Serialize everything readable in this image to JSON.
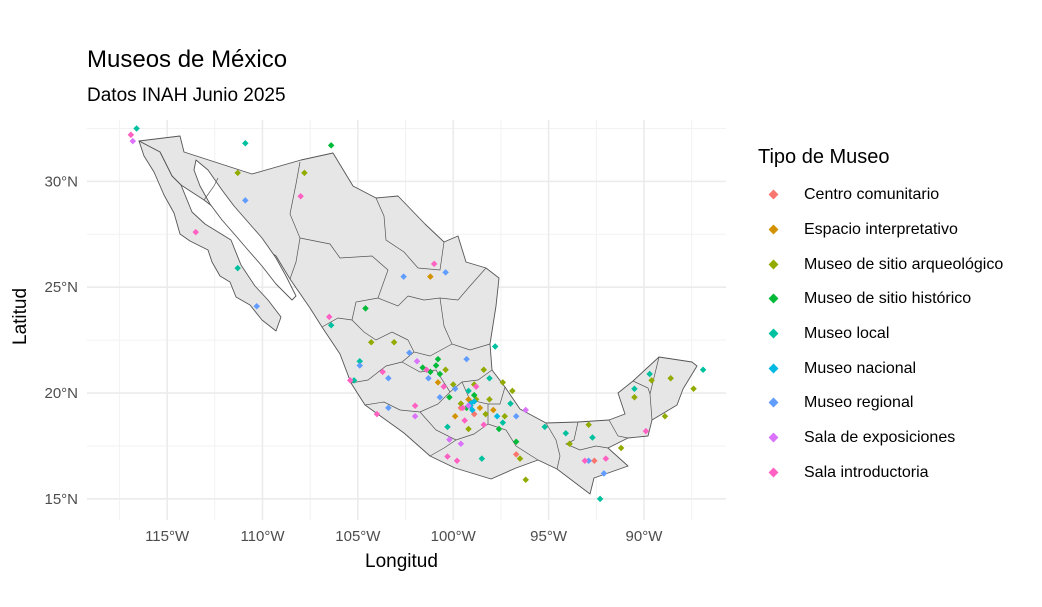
{
  "title": "Museos de México",
  "subtitle": "Datos INAH Junio 2025",
  "chart_data": {
    "type": "scatter",
    "xlabel": "Longitud",
    "ylabel": "Latitud",
    "xlim": [
      -119.2,
      -85.7
    ],
    "ylim": [
      14.0,
      32.9
    ],
    "x_ticks": [
      {
        "value": -115,
        "label": "115°W"
      },
      {
        "value": -110,
        "label": "110°W"
      },
      {
        "value": -105,
        "label": "105°W"
      },
      {
        "value": -100,
        "label": "100°W"
      },
      {
        "value": -95,
        "label": "95°W"
      },
      {
        "value": -90,
        "label": "90°W"
      }
    ],
    "y_ticks": [
      {
        "value": 15,
        "label": "15°N"
      },
      {
        "value": 20,
        "label": "20°N"
      },
      {
        "value": 25,
        "label": "25°N"
      },
      {
        "value": 30,
        "label": "30°N"
      }
    ],
    "grid": true,
    "legend_title": "Tipo de Museo",
    "legend_position": "right",
    "series": [
      {
        "name": "Centro comunitario",
        "color": "#F8766D",
        "points": [
          [
            -99.1,
            19.4
          ],
          [
            -98.9,
            19.0
          ],
          [
            -96.7,
            17.1
          ],
          [
            -92.6,
            16.8
          ],
          [
            -99.6,
            19.3
          ]
        ]
      },
      {
        "name": "Espacio interpretativo",
        "color": "#D39200",
        "points": [
          [
            -101.2,
            25.5
          ],
          [
            -99.2,
            19.7
          ],
          [
            -98.6,
            19.3
          ],
          [
            -99.9,
            18.9
          ],
          [
            -97.9,
            19.2
          ],
          [
            -100.8,
            20.5
          ]
        ]
      },
      {
        "name": "Museo de sitio arqueológico",
        "color": "#93AA00",
        "points": [
          [
            -111.3,
            30.4
          ],
          [
            -107.8,
            30.4
          ],
          [
            -103.1,
            22.4
          ],
          [
            -104.3,
            22.4
          ],
          [
            -100.4,
            21.1
          ],
          [
            -98.9,
            20.4
          ],
          [
            -97.4,
            20.5
          ],
          [
            -96.9,
            20.1
          ],
          [
            -98.8,
            19.7
          ],
          [
            -98.3,
            19.0
          ],
          [
            -99.2,
            18.3
          ],
          [
            -96.2,
            15.9
          ],
          [
            -96.5,
            16.9
          ],
          [
            -93.9,
            17.6
          ],
          [
            -91.2,
            17.4
          ],
          [
            -90.5,
            19.8
          ],
          [
            -89.6,
            20.6
          ],
          [
            -88.6,
            20.7
          ],
          [
            -87.4,
            20.2
          ],
          [
            -88.9,
            18.9
          ],
          [
            -92.9,
            18.5
          ],
          [
            -98.4,
            21.1
          ],
          [
            -100.0,
            20.4
          ],
          [
            -97.3,
            18.9
          ],
          [
            -99.6,
            19.5
          ],
          [
            -98.1,
            19.7
          ]
        ]
      },
      {
        "name": "Museo de sitio histórico",
        "color": "#00BA38",
        "points": [
          [
            -106.4,
            31.7
          ],
          [
            -104.6,
            24.0
          ],
          [
            -101.2,
            21.0
          ],
          [
            -100.9,
            21.3
          ],
          [
            -100.7,
            20.9
          ],
          [
            -99.3,
            19.3
          ],
          [
            -96.7,
            17.7
          ],
          [
            -97.6,
            18.3
          ],
          [
            -100.2,
            19.8
          ],
          [
            -98.9,
            19.9
          ],
          [
            -101.6,
            21.2
          ],
          [
            -100.8,
            21.6
          ]
        ]
      },
      {
        "name": "Museo local",
        "color": "#00C19F",
        "points": [
          [
            -116.6,
            32.5
          ],
          [
            -110.9,
            31.8
          ],
          [
            -111.3,
            25.9
          ],
          [
            -106.4,
            23.2
          ],
          [
            -105.2,
            20.6
          ],
          [
            -104.9,
            21.5
          ],
          [
            -97.8,
            22.2
          ],
          [
            -98.1,
            20.7
          ],
          [
            -97.4,
            18.6
          ],
          [
            -95.2,
            18.4
          ],
          [
            -94.1,
            18.1
          ],
          [
            -92.7,
            17.9
          ],
          [
            -89.7,
            20.9
          ],
          [
            -90.5,
            20.2
          ],
          [
            -86.9,
            21.1
          ],
          [
            -92.3,
            15.0
          ],
          [
            -98.5,
            16.9
          ],
          [
            -100.3,
            18.4
          ],
          [
            -99.2,
            20.1
          ],
          [
            -97.0,
            19.5
          ]
        ]
      },
      {
        "name": "Museo nacional",
        "color": "#00B9E3",
        "points": [
          [
            -99.1,
            19.4
          ],
          [
            -99.2,
            19.4
          ],
          [
            -99.1,
            19.5
          ],
          [
            -98.9,
            19.6
          ],
          [
            -97.7,
            18.9
          ],
          [
            -99.0,
            19.2
          ]
        ]
      },
      {
        "name": "Museo regional",
        "color": "#619CFF",
        "points": [
          [
            -110.9,
            29.1
          ],
          [
            -110.3,
            24.1
          ],
          [
            -102.6,
            25.5
          ],
          [
            -102.3,
            21.9
          ],
          [
            -100.4,
            25.7
          ],
          [
            -101.3,
            20.7
          ],
          [
            -103.4,
            19.3
          ],
          [
            -99.9,
            20.2
          ],
          [
            -92.9,
            16.8
          ],
          [
            -92.1,
            16.2
          ],
          [
            -100.7,
            19.8
          ],
          [
            -103.4,
            20.7
          ],
          [
            -104.9,
            21.3
          ],
          [
            -99.3,
            21.6
          ],
          [
            -96.7,
            18.9
          ]
        ]
      },
      {
        "name": "Sala de exposiciones",
        "color": "#DB72FB",
        "points": [
          [
            -116.8,
            31.9
          ],
          [
            -99.2,
            19.4
          ],
          [
            -100.2,
            17.8
          ],
          [
            -102.0,
            18.9
          ],
          [
            -96.2,
            19.2
          ],
          [
            -101.9,
            21.5
          ],
          [
            -99.6,
            17.6
          ]
        ]
      },
      {
        "name": "Sala introductoria",
        "color": "#FF61C3",
        "points": [
          [
            -116.9,
            32.2
          ],
          [
            -113.5,
            27.6
          ],
          [
            -108.0,
            29.3
          ],
          [
            -106.5,
            23.6
          ],
          [
            -105.4,
            20.6
          ],
          [
            -104.0,
            19.0
          ],
          [
            -103.7,
            21.0
          ],
          [
            -102.0,
            19.4
          ],
          [
            -101.0,
            26.1
          ],
          [
            -100.3,
            17.0
          ],
          [
            -99.5,
            19.3
          ],
          [
            -98.4,
            18.5
          ],
          [
            -100.5,
            20.3
          ],
          [
            -99.4,
            18.7
          ],
          [
            -93.1,
            16.8
          ],
          [
            -89.9,
            18.2
          ],
          [
            -92.0,
            16.9
          ],
          [
            -98.8,
            20.3
          ],
          [
            -99.8,
            16.8
          ],
          [
            -101.4,
            21.1
          ]
        ]
      }
    ]
  }
}
